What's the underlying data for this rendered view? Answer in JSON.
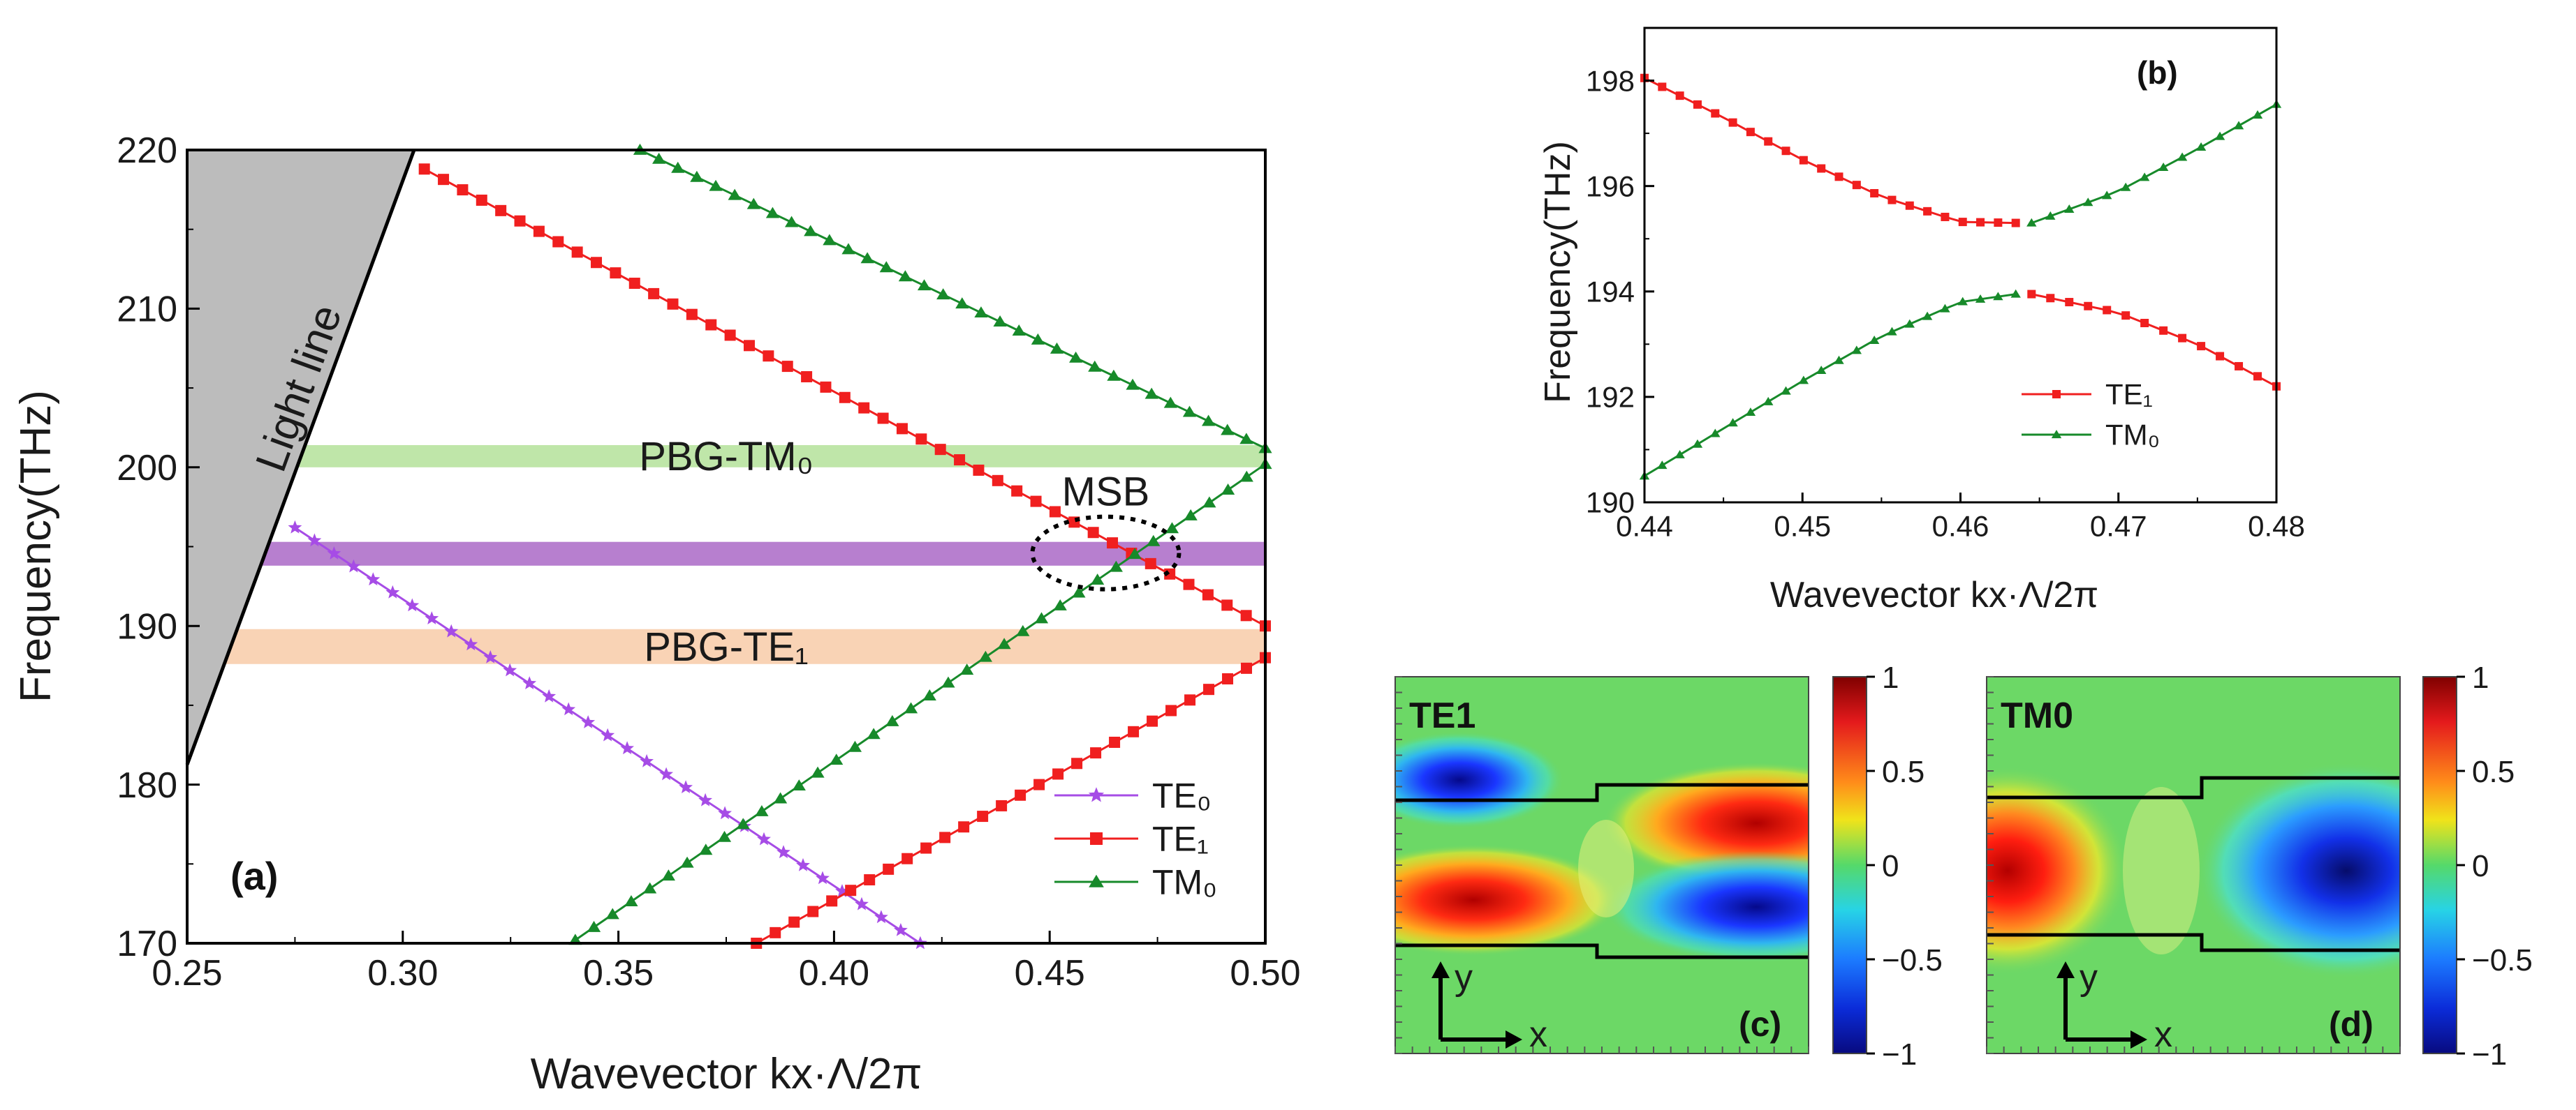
{
  "chart_data": [
    {
      "panel": "a",
      "type": "line",
      "panel_label": "(a)",
      "xlabel": "Wavevector kx·Λ/2π",
      "ylabel": "Frequency(THz)",
      "xlim": [
        0.25,
        0.5
      ],
      "ylim": [
        170,
        220
      ],
      "xticks": [
        "0.25",
        "0.30",
        "0.35",
        "0.40",
        "0.45",
        "0.50"
      ],
      "yticks": [
        "170",
        "180",
        "190",
        "200",
        "210",
        "220"
      ],
      "light_line": {
        "label": "Light line",
        "x": [
          0.25,
          0.305
        ],
        "y": [
          181,
          220
        ]
      },
      "bands": [
        {
          "name": "PBG-TM0",
          "label": "PBG-TM₀",
          "ymin": 200,
          "ymax": 201.4,
          "color": "#bfe6a9"
        },
        {
          "name": "MSB",
          "ymin": 193.8,
          "ymax": 195.3,
          "color": "#b77fcf"
        },
        {
          "name": "PBG-TE1",
          "label": "PBG-TE₁",
          "ymin": 187.6,
          "ymax": 189.8,
          "color": "#f9d3b5"
        }
      ],
      "annotation": {
        "label": "MSB",
        "x": 0.463,
        "y": 194.6
      },
      "legend": {
        "position": "bottom-right",
        "entries": [
          {
            "label": "TE0",
            "display": "TE₀",
            "color": "#a64ce6",
            "marker": "star"
          },
          {
            "label": "TE1",
            "display": "TE₁",
            "color": "#f01f1f",
            "marker": "square"
          },
          {
            "label": "TM0",
            "display": "TM₀",
            "color": "#178a2a",
            "marker": "triangle"
          }
        ]
      },
      "series": [
        {
          "name": "TE0",
          "color": "#a64ce6",
          "marker": "star",
          "x": [
            0.275,
            0.42
          ],
          "y": [
            196.2,
            170.0
          ],
          "n": 33
        },
        {
          "name": "TE1 upper",
          "color": "#f01f1f",
          "marker": "square",
          "x": [
            0.305,
            0.5
          ],
          "y": [
            218.8,
            190.0
          ],
          "n": 45
        },
        {
          "name": "TE1 lower",
          "color": "#f01f1f",
          "marker": "square",
          "x": [
            0.382,
            0.5
          ],
          "y": [
            170.0,
            188.0
          ],
          "n": 28
        },
        {
          "name": "TM0 upper",
          "color": "#178a2a",
          "marker": "triangle",
          "x": [
            0.355,
            0.5
          ],
          "y": [
            220.0,
            201.2
          ],
          "n": 34
        },
        {
          "name": "TM0 lower",
          "color": "#178a2a",
          "marker": "triangle",
          "x": [
            0.34,
            0.5
          ],
          "y": [
            170.2,
            200.2
          ],
          "n": 38
        }
      ]
    },
    {
      "panel": "b",
      "type": "line",
      "panel_label": "(b)",
      "xlabel": "Wavevector kx·Λ/2π",
      "ylabel": "Frequency(THz)",
      "xlim": [
        0.44,
        0.48
      ],
      "ylim": [
        190,
        199
      ],
      "xticks": [
        "0.44",
        "0.45",
        "0.46",
        "0.47",
        "0.48"
      ],
      "yticks": [
        "190",
        "192",
        "194",
        "196",
        "198"
      ],
      "legend": {
        "position": "lower-right",
        "entries": [
          {
            "label": "TE1",
            "display": "TE₁",
            "color": "#f01f1f",
            "marker": "square"
          },
          {
            "label": "TM0",
            "display": "TM₀",
            "color": "#178a2a",
            "marker": "triangle"
          }
        ]
      },
      "series": [
        {
          "name": "TE1 upper",
          "color": "#f01f1f",
          "marker": "square",
          "x": [
            0.44,
            0.445,
            0.45,
            0.455,
            0.46,
            0.4635
          ],
          "y": [
            198.05,
            197.3,
            196.5,
            195.8,
            195.32,
            195.3
          ],
          "n": 22
        },
        {
          "name": "TM0 upper",
          "color": "#178a2a",
          "marker": "triangle",
          "x": [
            0.4645,
            0.47,
            0.475,
            0.48
          ],
          "y": [
            195.3,
            195.9,
            196.7,
            197.55
          ],
          "n": 14
        },
        {
          "name": "TM0 lower",
          "color": "#178a2a",
          "marker": "triangle",
          "x": [
            0.44,
            0.445,
            0.45,
            0.455,
            0.46,
            0.4635
          ],
          "y": [
            190.5,
            191.4,
            192.3,
            193.15,
            193.8,
            193.95
          ],
          "n": 22
        },
        {
          "name": "TE1 lower",
          "color": "#f01f1f",
          "marker": "square",
          "x": [
            0.4645,
            0.47,
            0.475,
            0.48
          ],
          "y": [
            193.95,
            193.6,
            193.0,
            192.2
          ],
          "n": 14
        }
      ]
    },
    {
      "panel": "c",
      "type": "heatmap",
      "mode_label": "TE1",
      "panel_label": "(c)",
      "axes": {
        "y": "y",
        "x": "x"
      },
      "colorbar": {
        "range": [
          -1,
          1
        ],
        "ticks": [
          "1",
          "0.5",
          "0",
          "−0.5",
          "−1"
        ]
      }
    },
    {
      "panel": "d",
      "type": "heatmap",
      "mode_label": "TM0",
      "panel_label": "(d)",
      "axes": {
        "y": "y",
        "x": "x"
      },
      "colorbar": {
        "range": [
          -1,
          1
        ],
        "ticks": [
          "1",
          "0.5",
          "0",
          "−0.5",
          "−1"
        ]
      }
    }
  ]
}
